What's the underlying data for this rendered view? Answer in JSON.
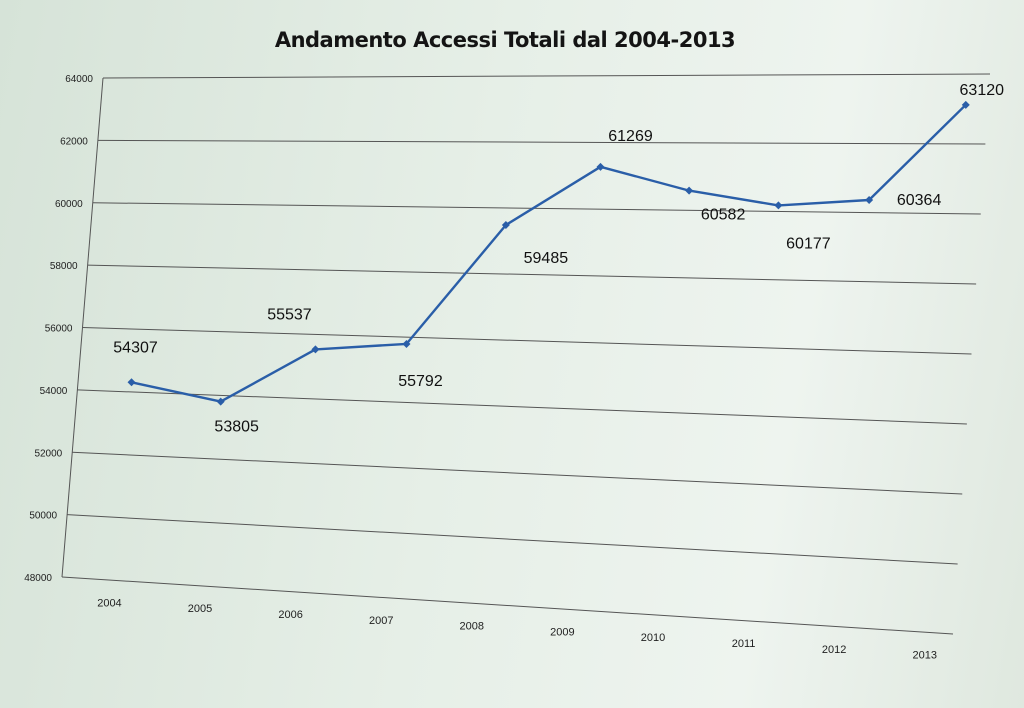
{
  "chart_data": {
    "type": "line",
    "title": "Andamento Accessi Totali dal 2004-2013",
    "xlabel": "",
    "ylabel": "",
    "ylim": [
      48000,
      64000
    ],
    "yticks": [
      48000,
      50000,
      52000,
      54000,
      56000,
      58000,
      60000,
      62000,
      64000
    ],
    "ytick_labels": [
      "48000",
      "50000",
      "52000",
      "54000",
      "56000",
      "58000",
      "60000",
      "62000",
      "64000"
    ],
    "categories": [
      "2004",
      "2005",
      "2006",
      "2007",
      "2008",
      "2009",
      "2010",
      "2011",
      "2012",
      "2013"
    ],
    "values": [
      54307,
      53805,
      55537,
      55792,
      59485,
      61269,
      60582,
      60177,
      60364,
      63120
    ],
    "data_labels": [
      "54307",
      "53805",
      "55537",
      "55792",
      "59485",
      "61269",
      "60582",
      "60177",
      "60364",
      "63120"
    ],
    "series_color": "#2a5ea8",
    "grid": true,
    "legend": "none"
  }
}
